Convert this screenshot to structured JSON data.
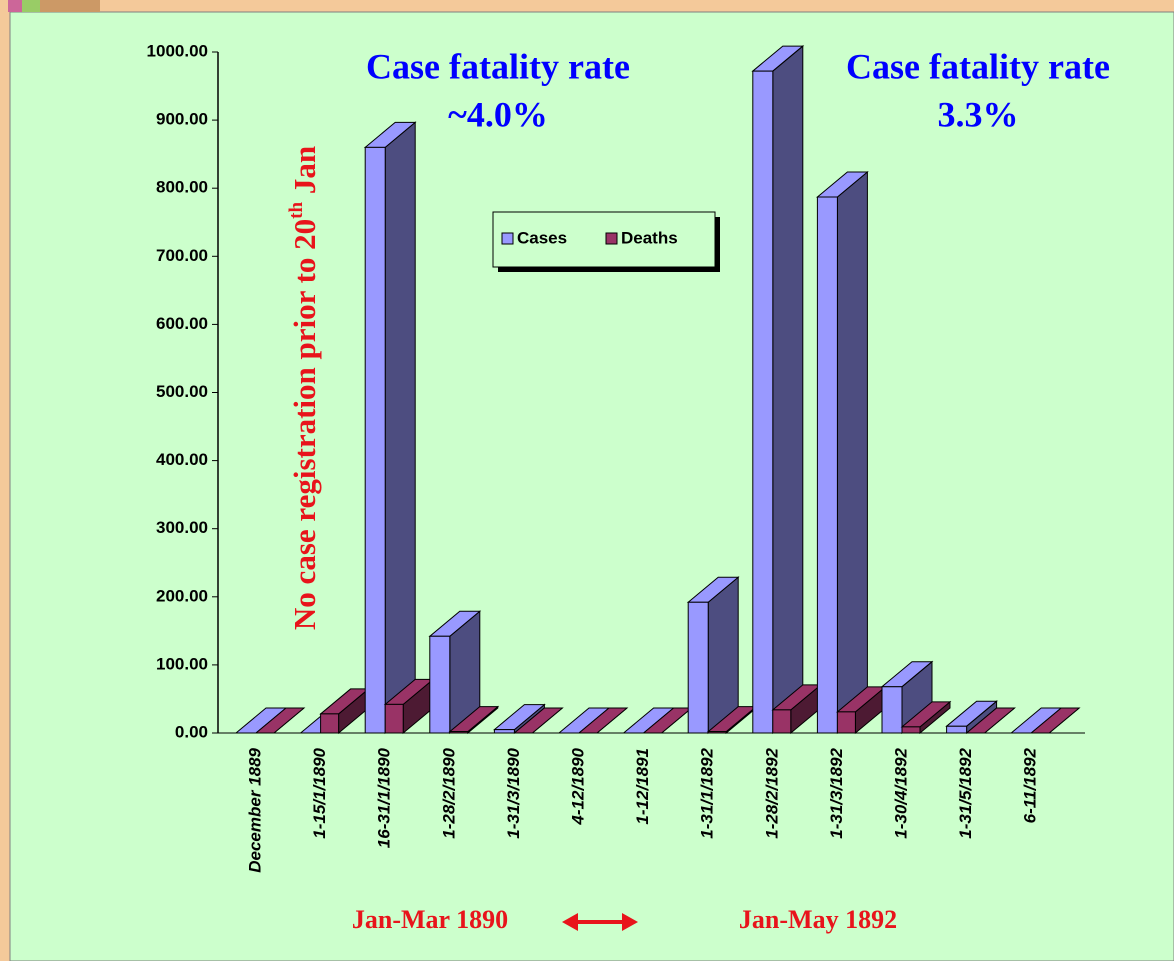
{
  "chart_data": {
    "type": "bar3d",
    "categories": [
      "December 1889",
      "1-15/1/1890",
      "16-31/1/1890",
      "1-28/2/1890",
      "1-31/3/1890",
      "4-12/1890",
      "1-12/1891",
      "1-31/1/1892",
      "1-28/2/1892",
      "1-31/3/1892",
      "1-30/4/1892",
      "1-31/5/1892",
      "6-11/1892"
    ],
    "series": [
      {
        "name": "Cases",
        "color": "#9999ff",
        "values": [
          0,
          0,
          860,
          142,
          5,
          0,
          0,
          192,
          972,
          787,
          68,
          10,
          0
        ]
      },
      {
        "name": "Deaths",
        "color": "#993366",
        "values": [
          0,
          28,
          42,
          2,
          0,
          0,
          0,
          2,
          34,
          31,
          9,
          0,
          0
        ]
      }
    ],
    "ylim": [
      0,
      1000
    ],
    "yticks": [
      {
        "value": 0,
        "label": "0.00"
      },
      {
        "value": 100,
        "label": "100.00"
      },
      {
        "value": 200,
        "label": "200.00"
      },
      {
        "value": 300,
        "label": "300.00"
      },
      {
        "value": 400,
        "label": "400.00"
      },
      {
        "value": 500,
        "label": "500.00"
      },
      {
        "value": 600,
        "label": "600.00"
      },
      {
        "value": 700,
        "label": "700.00"
      },
      {
        "value": 800,
        "label": "800.00"
      },
      {
        "value": 900,
        "label": "900.00"
      },
      {
        "value": 1000,
        "label": "1000.00"
      }
    ],
    "annotations": {
      "left_title": "Case fatality rate",
      "left_rate": "~4.0%",
      "right_title": "Case fatality rate",
      "right_rate": "3.3%",
      "note": {
        "main": "No case registration prior to 20",
        "sup": "th",
        "end": " Jan"
      },
      "period_1": "Jan-Mar 1890",
      "period_2": "Jan-May 1892"
    }
  }
}
